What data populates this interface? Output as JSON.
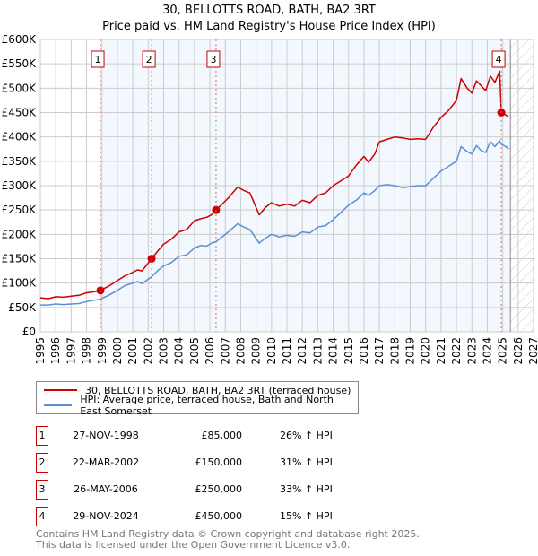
{
  "chart_data": {
    "type": "line",
    "title": "30, BELLOTTS ROAD, BATH, BA2 3RT",
    "subtitle": "Price paid vs. HM Land Registry's House Price Index (HPI)",
    "xlim": [
      1995,
      2027
    ],
    "ylim": [
      0,
      600000
    ],
    "x_ticks": [
      "1995",
      "1996",
      "1997",
      "1998",
      "1999",
      "2000",
      "2001",
      "2002",
      "2003",
      "2004",
      "2005",
      "2006",
      "2007",
      "2008",
      "2009",
      "2010",
      "2011",
      "2012",
      "2013",
      "2014",
      "2015",
      "2016",
      "2017",
      "2018",
      "2019",
      "2020",
      "2021",
      "2022",
      "2023",
      "2024",
      "2025",
      "2026",
      "2027"
    ],
    "y_ticks": [
      {
        "v": 0,
        "label": "£0"
      },
      {
        "v": 50000,
        "label": "£50K"
      },
      {
        "v": 100000,
        "label": "£100K"
      },
      {
        "v": 150000,
        "label": "£150K"
      },
      {
        "v": 200000,
        "label": "£200K"
      },
      {
        "v": 250000,
        "label": "£250K"
      },
      {
        "v": 300000,
        "label": "£300K"
      },
      {
        "v": 350000,
        "label": "£350K"
      },
      {
        "v": 400000,
        "label": "£400K"
      },
      {
        "v": 450000,
        "label": "£450K"
      },
      {
        "v": 500000,
        "label": "£500K"
      },
      {
        "v": 550000,
        "label": "£550K"
      },
      {
        "v": 600000,
        "label": "£600K"
      }
    ],
    "grid": true,
    "shaded_from": 1998.9,
    "data_end": 2025.5,
    "series": [
      {
        "name": "30, BELLOTTS ROAD, BATH, BA2 3RT (terraced house)",
        "color": "#cc0000",
        "x": [
          1995,
          1995.5,
          1996,
          1996.5,
          1997,
          1997.5,
          1998,
          1998.5,
          1998.9,
          1999.5,
          2000,
          2000.5,
          2001,
          2001.3,
          2001.6,
          2002.22,
          2002.6,
          2003,
          2003.5,
          2004,
          2004.5,
          2005,
          2005.4,
          2005.8,
          2006.1,
          2006.4,
          2006.8,
          2007.2,
          2007.8,
          2008.2,
          2008.6,
          2009.2,
          2009.6,
          2010,
          2010.5,
          2011,
          2011.5,
          2012,
          2012.5,
          2013,
          2013.5,
          2014,
          2014.5,
          2015,
          2015.5,
          2016,
          2016.3,
          2016.7,
          2017,
          2017.5,
          2018,
          2018.5,
          2019,
          2019.5,
          2020,
          2020.5,
          2021,
          2021.5,
          2022,
          2022.3,
          2022.7,
          2023,
          2023.3,
          2023.6,
          2023.9,
          2024.2,
          2024.5,
          2024.8,
          2024.91,
          2025.2,
          2025.4
        ],
        "y": [
          70000,
          68000,
          72000,
          71000,
          73000,
          75000,
          80000,
          82000,
          85000,
          95000,
          105000,
          115000,
          122000,
          127000,
          125000,
          150000,
          165000,
          180000,
          190000,
          205000,
          210000,
          228000,
          232000,
          235000,
          240000,
          250000,
          262000,
          275000,
          297000,
          290000,
          285000,
          240000,
          255000,
          265000,
          258000,
          262000,
          258000,
          270000,
          265000,
          280000,
          285000,
          300000,
          310000,
          320000,
          342000,
          360000,
          348000,
          365000,
          390000,
          395000,
          400000,
          398000,
          395000,
          396000,
          395000,
          420000,
          440000,
          455000,
          475000,
          520000,
          500000,
          490000,
          515000,
          505000,
          495000,
          525000,
          512000,
          535000,
          450000,
          445000,
          440000
        ]
      },
      {
        "name": "HPI: Average price, terraced house, Bath and North East Somerset",
        "color": "#5b8fd1",
        "x": [
          1995,
          1995.5,
          1996,
          1996.5,
          1997,
          1997.5,
          1998,
          1998.5,
          1998.9,
          1999.5,
          2000,
          2000.5,
          2001,
          2001.3,
          2001.6,
          2002.22,
          2002.6,
          2003,
          2003.5,
          2004,
          2004.5,
          2005,
          2005.4,
          2005.8,
          2006.1,
          2006.4,
          2006.8,
          2007.2,
          2007.8,
          2008.2,
          2008.6,
          2009.2,
          2009.6,
          2010,
          2010.5,
          2011,
          2011.5,
          2012,
          2012.5,
          2013,
          2013.5,
          2014,
          2014.5,
          2015,
          2015.5,
          2016,
          2016.3,
          2016.7,
          2017,
          2017.5,
          2018,
          2018.5,
          2019,
          2019.5,
          2020,
          2020.5,
          2021,
          2021.5,
          2022,
          2022.3,
          2022.7,
          2023,
          2023.3,
          2023.6,
          2023.9,
          2024.2,
          2024.5,
          2024.8,
          2024.91,
          2025.2,
          2025.4
        ],
        "y": [
          55000,
          55000,
          57000,
          56000,
          57000,
          58000,
          62000,
          65000,
          67000,
          76000,
          85000,
          95000,
          100000,
          103000,
          99000,
          113000,
          125000,
          135000,
          142000,
          155000,
          158000,
          172000,
          177000,
          176000,
          182000,
          185000,
          195000,
          205000,
          222000,
          215000,
          210000,
          182000,
          192000,
          200000,
          195000,
          198000,
          196000,
          205000,
          203000,
          215000,
          218000,
          230000,
          245000,
          260000,
          270000,
          285000,
          280000,
          290000,
          300000,
          302000,
          300000,
          296000,
          298000,
          300000,
          300000,
          315000,
          330000,
          340000,
          350000,
          380000,
          370000,
          365000,
          382000,
          372000,
          368000,
          390000,
          380000,
          392000,
          385000,
          380000,
          375000
        ]
      }
    ],
    "sales": [
      {
        "n": "1",
        "x": 1998.9,
        "date": "27-NOV-1998",
        "price": 85000,
        "price_label": "£85,000",
        "hpi": "26% ↑ HPI"
      },
      {
        "n": "2",
        "x": 2002.22,
        "date": "22-MAR-2002",
        "price": 150000,
        "price_label": "£150,000",
        "hpi": "31% ↑ HPI"
      },
      {
        "n": "3",
        "x": 2006.4,
        "date": "26-MAY-2006",
        "price": 250000,
        "price_label": "£250,000",
        "hpi": "33% ↑ HPI"
      },
      {
        "n": "4",
        "x": 2024.91,
        "date": "29-NOV-2024",
        "price": 450000,
        "price_label": "£450,000",
        "hpi": "15% ↑ HPI"
      }
    ]
  },
  "footer": {
    "line1": "Contains HM Land Registry data © Crown copyright and database right 2025.",
    "line2": "This data is licensed under the Open Government Licence v3.0."
  }
}
